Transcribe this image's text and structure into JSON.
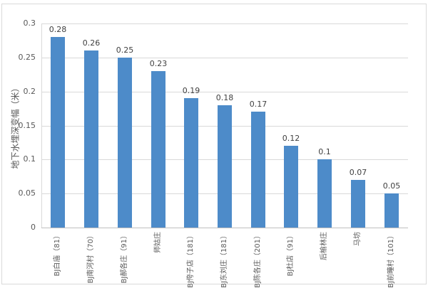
{
  "chart": {
    "bar_color": "#4d8bc9",
    "gridline_color": "#d9d9d9",
    "axis_color": "#bfbfbf",
    "text_color": "#595959",
    "background_color": "#ffffff"
  },
  "chart_data": {
    "type": "bar",
    "title": "",
    "ylabel": "地下水埋深变幅（米）",
    "xlabel": "",
    "categories": [
      "BJ白庙（81）",
      "BJ南河村（70）",
      "BJ郝各庄（91）",
      "师姑庄",
      "BJ侉子店（181）",
      "BJ东刘庄（181）",
      "BJ陈各庄（201）",
      "BJ杜店（91）",
      "后榆林庄",
      "马坊",
      "BJ前疃村（101）"
    ],
    "values": [
      0.28,
      0.26,
      0.25,
      0.23,
      0.19,
      0.18,
      0.17,
      0.12,
      0.1,
      0.07,
      0.05
    ],
    "data_labels": [
      "0.28",
      "0.26",
      "0.25",
      "0.23",
      "0.19",
      "0.18",
      "0.17",
      "0.12",
      "0.1",
      "0.07",
      "0.05"
    ],
    "ylim": [
      0,
      0.3
    ],
    "yticks": [
      0,
      0.05,
      0.1,
      0.15,
      0.2,
      0.25,
      0.3
    ],
    "ytick_labels": [
      "0",
      "0.05",
      "0.1",
      "0.15",
      "0.2",
      "0.25",
      "0.3"
    ],
    "grid": true,
    "legend": "none"
  }
}
